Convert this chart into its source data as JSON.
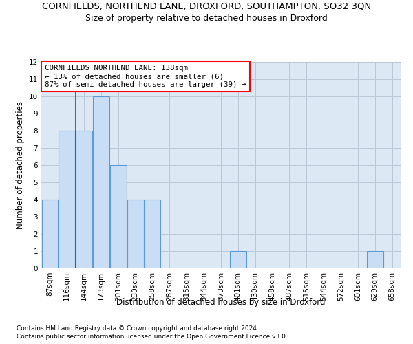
{
  "title": "CORNFIELDS, NORTHEND LANE, DROXFORD, SOUTHAMPTON, SO32 3QN",
  "subtitle": "Size of property relative to detached houses in Droxford",
  "xlabel": "Distribution of detached houses by size in Droxford",
  "ylabel": "Number of detached properties",
  "footer1": "Contains HM Land Registry data © Crown copyright and database right 2024.",
  "footer2": "Contains public sector information licensed under the Open Government Licence v3.0.",
  "categories": [
    "87sqm",
    "116sqm",
    "144sqm",
    "173sqm",
    "201sqm",
    "230sqm",
    "258sqm",
    "287sqm",
    "315sqm",
    "344sqm",
    "373sqm",
    "401sqm",
    "430sqm",
    "458sqm",
    "487sqm",
    "515sqm",
    "544sqm",
    "572sqm",
    "601sqm",
    "629sqm",
    "658sqm"
  ],
  "values": [
    4,
    8,
    8,
    10,
    6,
    4,
    4,
    0,
    0,
    0,
    0,
    1,
    0,
    0,
    0,
    0,
    0,
    0,
    0,
    1,
    0
  ],
  "bar_color": "#c9ddf5",
  "bar_edge_color": "#5b9bd5",
  "grid_color": "#b8c8d8",
  "background_color": "#dce9f5",
  "annotation_text": "CORNFIELDS NORTHEND LANE: 138sqm\n← 13% of detached houses are smaller (6)\n87% of semi-detached houses are larger (39) →",
  "redline_x": 1.5,
  "ylim": [
    0,
    12
  ],
  "yticks": [
    0,
    1,
    2,
    3,
    4,
    5,
    6,
    7,
    8,
    9,
    10,
    11,
    12
  ],
  "title_fontsize": 9.5,
  "subtitle_fontsize": 9,
  "annotation_fontsize": 7.8,
  "axis_label_fontsize": 8.5,
  "tick_fontsize": 7.5,
  "footer_fontsize": 6.5
}
